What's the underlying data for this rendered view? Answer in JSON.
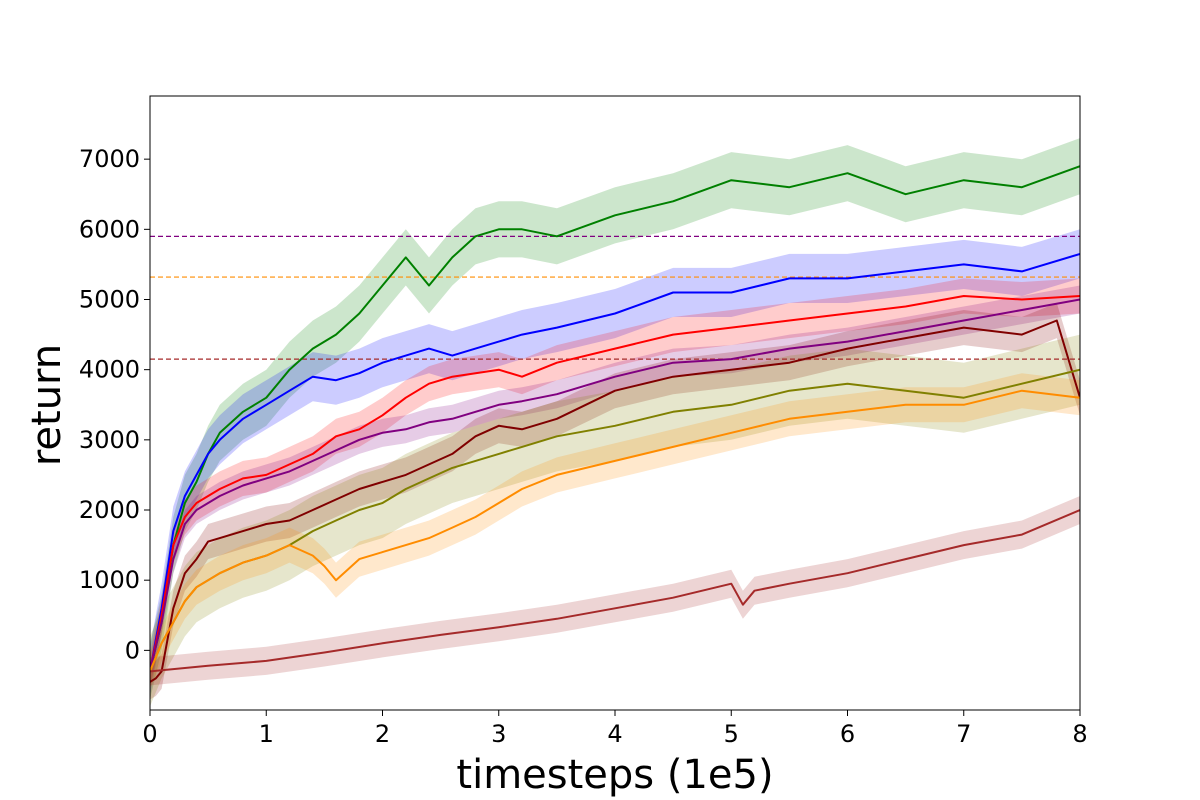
{
  "chart_data": {
    "type": "line",
    "title": "",
    "xlabel": "timesteps (1e5)",
    "ylabel": "return",
    "xlim": [
      0,
      8
    ],
    "ylim": [
      -850,
      7900
    ],
    "xticks": [
      0,
      1,
      2,
      3,
      4,
      5,
      6,
      7,
      8
    ],
    "yticks": [
      0,
      1000,
      2000,
      3000,
      4000,
      5000,
      6000,
      7000
    ],
    "grid": false,
    "legend": "none",
    "reference_lines": [
      {
        "y": 5900,
        "color": "#800080",
        "style": "dashed"
      },
      {
        "y": 5320,
        "color": "#ff8c00",
        "style": "dashed"
      },
      {
        "y": 4150,
        "color": "#a52a2a",
        "style": "dashed"
      }
    ],
    "series": [
      {
        "color": "#008000",
        "band": 400,
        "x": [
          0,
          0.1,
          0.2,
          0.3,
          0.4,
          0.5,
          0.6,
          0.8,
          1.0,
          1.2,
          1.4,
          1.6,
          1.8,
          2.0,
          2.2,
          2.4,
          2.6,
          2.8,
          3.0,
          3.2,
          3.5,
          4.0,
          4.5,
          5.0,
          5.5,
          6.0,
          6.5,
          7.0,
          7.5,
          8.0
        ],
        "y": [
          -300,
          400,
          1500,
          2100,
          2400,
          2800,
          3100,
          3400,
          3600,
          4000,
          4300,
          4500,
          4800,
          5200,
          5600,
          5200,
          5600,
          5900,
          6000,
          6000,
          5900,
          6200,
          6400,
          6700,
          6600,
          6800,
          6500,
          6700,
          6600,
          6900
        ]
      },
      {
        "color": "#0000ff",
        "band": 350,
        "x": [
          0,
          0.1,
          0.2,
          0.3,
          0.4,
          0.5,
          0.6,
          0.8,
          1.0,
          1.2,
          1.4,
          1.6,
          1.8,
          2.0,
          2.2,
          2.4,
          2.6,
          2.8,
          3.0,
          3.2,
          3.5,
          4.0,
          4.5,
          5.0,
          5.5,
          6.0,
          6.5,
          7.0,
          7.5,
          8.0
        ],
        "y": [
          -300,
          600,
          1700,
          2200,
          2500,
          2800,
          3000,
          3300,
          3500,
          3700,
          3900,
          3850,
          3950,
          4100,
          4200,
          4300,
          4200,
          4300,
          4400,
          4500,
          4600,
          4800,
          5100,
          5100,
          5300,
          5300,
          5400,
          5500,
          5400,
          5650
        ]
      },
      {
        "color": "#ff0000",
        "band": 250,
        "x": [
          0,
          0.1,
          0.2,
          0.3,
          0.4,
          0.6,
          0.8,
          1.0,
          1.2,
          1.4,
          1.6,
          1.8,
          2.0,
          2.2,
          2.4,
          2.6,
          2.8,
          3.0,
          3.2,
          3.5,
          4.0,
          4.5,
          5.0,
          5.5,
          6.0,
          6.5,
          7.0,
          7.5,
          8.0
        ],
        "y": [
          -300,
          500,
          1500,
          1900,
          2100,
          2300,
          2450,
          2500,
          2650,
          2800,
          3050,
          3150,
          3350,
          3600,
          3800,
          3900,
          3950,
          4000,
          3900,
          4100,
          4300,
          4500,
          4600,
          4700,
          4800,
          4900,
          5050,
          5000,
          5050
        ]
      },
      {
        "color": "#800080",
        "band": 200,
        "x": [
          0,
          0.1,
          0.2,
          0.3,
          0.4,
          0.6,
          0.8,
          1.0,
          1.2,
          1.4,
          1.6,
          1.8,
          2.0,
          2.2,
          2.4,
          2.6,
          2.8,
          3.0,
          3.2,
          3.5,
          4.0,
          4.5,
          5.0,
          5.5,
          6.0,
          6.5,
          7.0,
          7.5,
          8.0
        ],
        "y": [
          -300,
          400,
          1300,
          1800,
          2000,
          2200,
          2350,
          2450,
          2550,
          2700,
          2850,
          3000,
          3100,
          3150,
          3250,
          3300,
          3400,
          3500,
          3550,
          3650,
          3900,
          4100,
          4150,
          4300,
          4400,
          4550,
          4700,
          4850,
          5000
        ]
      },
      {
        "color": "#800000",
        "band": 250,
        "x": [
          0,
          0.05,
          0.1,
          0.2,
          0.3,
          0.4,
          0.5,
          0.6,
          0.8,
          1.0,
          1.2,
          1.4,
          1.6,
          1.8,
          2.0,
          2.2,
          2.4,
          2.6,
          2.8,
          3.0,
          3.2,
          3.5,
          4.0,
          4.5,
          5.0,
          5.5,
          6.0,
          6.5,
          7.0,
          7.5,
          7.8,
          8.0
        ],
        "y": [
          -450,
          -400,
          -300,
          600,
          1100,
          1300,
          1550,
          1600,
          1700,
          1800,
          1850,
          2000,
          2150,
          2300,
          2400,
          2500,
          2650,
          2800,
          3050,
          3200,
          3150,
          3300,
          3700,
          3900,
          4000,
          4100,
          4300,
          4450,
          4600,
          4500,
          4700,
          3600
        ]
      },
      {
        "color": "#808000",
        "band": 500,
        "x": [
          0,
          0.1,
          0.2,
          0.3,
          0.4,
          0.6,
          0.8,
          1.0,
          1.2,
          1.4,
          1.6,
          1.8,
          2.0,
          2.2,
          2.4,
          2.6,
          2.8,
          3.0,
          3.2,
          3.5,
          4.0,
          4.5,
          5.0,
          5.5,
          6.0,
          6.5,
          7.0,
          7.5,
          8.0
        ],
        "y": [
          -300,
          100,
          400,
          700,
          900,
          1100,
          1250,
          1350,
          1500,
          1700,
          1850,
          2000,
          2100,
          2300,
          2450,
          2600,
          2700,
          2800,
          2900,
          3050,
          3200,
          3400,
          3500,
          3700,
          3800,
          3700,
          3600,
          3800,
          4000
        ]
      },
      {
        "color": "#ff8c00",
        "band": 250,
        "x": [
          0,
          0.1,
          0.2,
          0.3,
          0.4,
          0.6,
          0.8,
          1.0,
          1.2,
          1.4,
          1.5,
          1.6,
          1.7,
          1.8,
          2.0,
          2.2,
          2.4,
          2.6,
          2.8,
          3.0,
          3.2,
          3.5,
          4.0,
          4.5,
          5.0,
          5.5,
          6.0,
          6.5,
          7.0,
          7.5,
          8.0
        ],
        "y": [
          -300,
          100,
          400,
          700,
          900,
          1100,
          1250,
          1350,
          1500,
          1350,
          1200,
          1000,
          1150,
          1300,
          1400,
          1500,
          1600,
          1750,
          1900,
          2100,
          2300,
          2500,
          2700,
          2900,
          3100,
          3300,
          3400,
          3500,
          3500,
          3700,
          3600
        ]
      },
      {
        "color": "#a52a2a",
        "band": 200,
        "x": [
          0,
          0.5,
          1.0,
          1.5,
          2.0,
          2.5,
          3.0,
          3.5,
          4.0,
          4.5,
          5.0,
          5.1,
          5.2,
          5.5,
          6.0,
          6.5,
          7.0,
          7.5,
          8.0
        ],
        "y": [
          -300,
          -220,
          -150,
          -30,
          100,
          220,
          330,
          450,
          600,
          750,
          950,
          650,
          850,
          950,
          1100,
          1300,
          1500,
          1650,
          2000
        ]
      }
    ]
  }
}
